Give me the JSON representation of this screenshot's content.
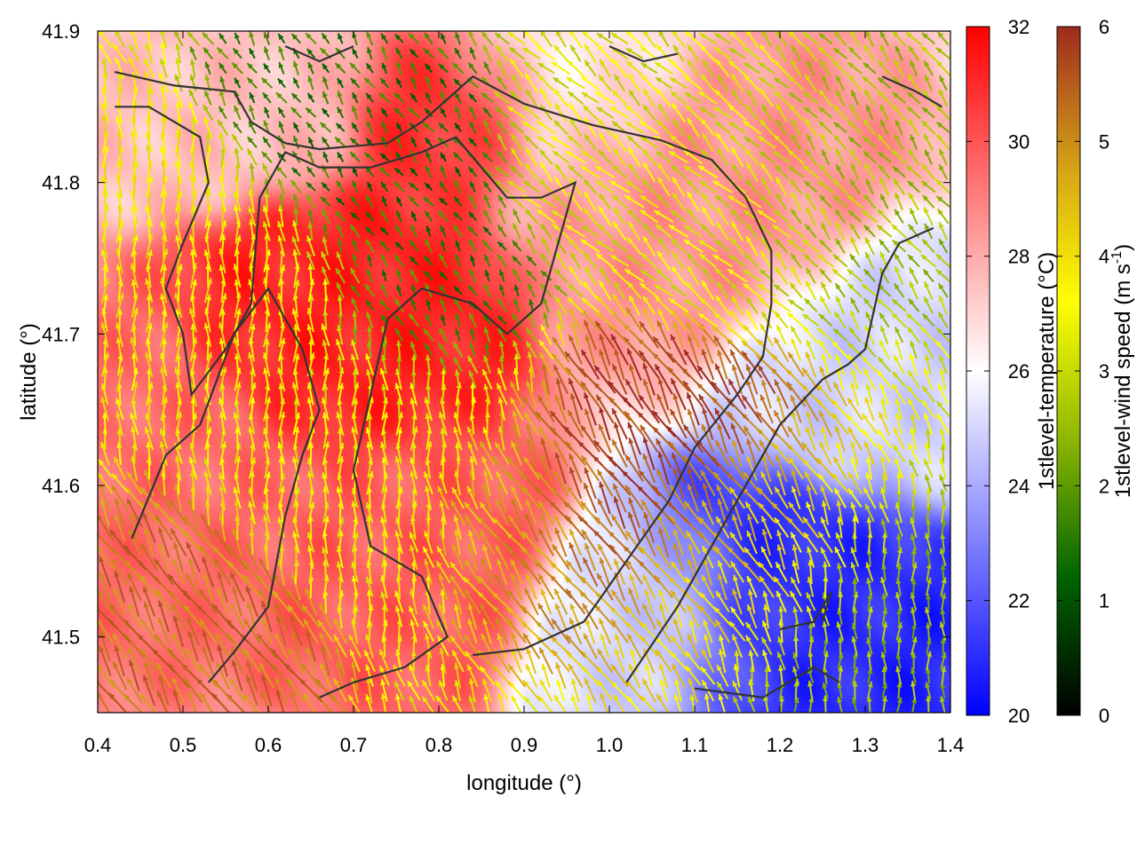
{
  "chart_data": {
    "type": "heatmap",
    "title": "",
    "xlabel": "longitude (°)",
    "ylabel": "latitude (°)",
    "xlim": [
      0.4,
      1.4
    ],
    "ylim": [
      41.45,
      41.9
    ],
    "x_ticks": [
      {
        "value": 0.4,
        "label": "0.4"
      },
      {
        "value": 0.5,
        "label": "0.5"
      },
      {
        "value": 0.6,
        "label": "0.6"
      },
      {
        "value": 0.7,
        "label": "0.7"
      },
      {
        "value": 0.8,
        "label": "0.8"
      },
      {
        "value": 0.9,
        "label": "0.9"
      },
      {
        "value": 1.0,
        "label": "1.0"
      },
      {
        "value": 1.1,
        "label": "1.1"
      },
      {
        "value": 1.2,
        "label": "1.2"
      },
      {
        "value": 1.3,
        "label": "1.3"
      },
      {
        "value": 1.4,
        "label": "1.4"
      }
    ],
    "y_ticks": [
      {
        "value": 41.5,
        "label": "41.5"
      },
      {
        "value": 41.6,
        "label": "41.6"
      },
      {
        "value": 41.7,
        "label": "41.7"
      },
      {
        "value": 41.8,
        "label": "41.8"
      },
      {
        "value": 41.9,
        "label": "41.9"
      }
    ],
    "temperature_colorbar": {
      "label": "1stlevel-temperature (°C)",
      "range": [
        20,
        32
      ],
      "ticks": [
        {
          "value": 20,
          "label": "20"
        },
        {
          "value": 22,
          "label": "22"
        },
        {
          "value": 24,
          "label": "24"
        },
        {
          "value": 26,
          "label": "26"
        },
        {
          "value": 28,
          "label": "28"
        },
        {
          "value": 30,
          "label": "30"
        },
        {
          "value": 32,
          "label": "32"
        }
      ],
      "colors": [
        "#0000ff",
        "#ffffff",
        "#ff0000"
      ]
    },
    "wind_colorbar": {
      "label": "1stlevel-wind speed (m s",
      "label_sup": "-1",
      "label_end": ")",
      "range": [
        0,
        6
      ],
      "ticks": [
        {
          "value": 0,
          "label": "0"
        },
        {
          "value": 1,
          "label": "1"
        },
        {
          "value": 2,
          "label": "2"
        },
        {
          "value": 3,
          "label": "3"
        },
        {
          "value": 4,
          "label": "4"
        },
        {
          "value": 5,
          "label": "5"
        },
        {
          "value": 6,
          "label": "6"
        }
      ],
      "colors": [
        "#000000",
        "#006400",
        "#8db600",
        "#ffff00",
        "#d4a017",
        "#9e2a1e"
      ]
    },
    "temperature_field": [
      {
        "lon": 0.45,
        "lat": 41.6,
        "temp": 29.5,
        "sigma": 0.09
      },
      {
        "lon": 0.68,
        "lat": 41.7,
        "temp": 31.2,
        "sigma": 0.07
      },
      {
        "lon": 0.82,
        "lat": 41.85,
        "temp": 31.0,
        "sigma": 0.05
      },
      {
        "lon": 0.75,
        "lat": 41.55,
        "temp": 29.8,
        "sigma": 0.07
      },
      {
        "lon": 1.22,
        "lat": 41.5,
        "temp": 21.0,
        "sigma": 0.08
      },
      {
        "lon": 1.35,
        "lat": 41.47,
        "temp": 20.8,
        "sigma": 0.05
      },
      {
        "lon": 1.33,
        "lat": 41.68,
        "temp": 25.0,
        "sigma": 0.07
      },
      {
        "lon": 1.05,
        "lat": 41.5,
        "temp": 25.2,
        "sigma": 0.06
      },
      {
        "lon": 0.95,
        "lat": 41.88,
        "temp": 26.5,
        "sigma": 0.07
      },
      {
        "lon": 1.12,
        "lat": 41.8,
        "temp": 28.5,
        "sigma": 0.08
      },
      {
        "lon": 0.55,
        "lat": 41.88,
        "temp": 27.5,
        "sigma": 0.07
      }
    ],
    "wind_field": [
      {
        "lon": 1.02,
        "lat": 41.61,
        "speed": 5.8,
        "u": -0.5,
        "v": 0.85,
        "sigma": 0.07
      },
      {
        "lon": 0.5,
        "lat": 41.5,
        "speed": 5.2,
        "u": -0.5,
        "v": 0.85,
        "sigma": 0.06
      },
      {
        "lon": 0.9,
        "lat": 41.58,
        "speed": 4.8,
        "u": -0.6,
        "v": 0.8,
        "sigma": 0.06
      },
      {
        "lon": 1.15,
        "lat": 41.55,
        "speed": 4.2,
        "u": -0.5,
        "v": 0.85,
        "sigma": 0.07
      },
      {
        "lon": 0.52,
        "lat": 41.75,
        "speed": 3.8,
        "u": 0.0,
        "v": 1.0,
        "sigma": 0.07
      },
      {
        "lon": 0.75,
        "lat": 41.62,
        "speed": 3.5,
        "u": 0.0,
        "v": 1.0,
        "sigma": 0.08
      },
      {
        "lon": 0.7,
        "lat": 41.82,
        "speed": 1.4,
        "u": -0.6,
        "v": 0.8,
        "sigma": 0.06
      },
      {
        "lon": 0.8,
        "lat": 41.72,
        "speed": 1.6,
        "u": -0.5,
        "v": 0.85,
        "sigma": 0.05
      },
      {
        "lon": 0.68,
        "lat": 41.86,
        "speed": 1.6,
        "u": -0.5,
        "v": 0.85,
        "sigma": 0.05
      },
      {
        "lon": 1.3,
        "lat": 41.82,
        "speed": 2.6,
        "u": -0.6,
        "v": 0.8,
        "sigma": 0.07
      },
      {
        "lon": 1.3,
        "lat": 41.5,
        "speed": 2.5,
        "u": 0.0,
        "v": 1.0,
        "sigma": 0.07
      },
      {
        "lon": 1.1,
        "lat": 41.82,
        "speed": 3.2,
        "u": -0.7,
        "v": 0.7,
        "sigma": 0.08
      }
    ],
    "contour_lines": [
      [
        [
          0.42,
          41.873
        ],
        [
          0.49,
          41.864
        ],
        [
          0.56,
          41.86
        ],
        [
          0.58,
          41.84
        ],
        [
          0.62,
          41.826
        ],
        [
          0.66,
          41.822
        ],
        [
          0.74,
          41.826
        ],
        [
          0.78,
          41.84
        ],
        [
          0.84,
          41.87
        ],
        [
          0.9,
          41.852
        ],
        [
          0.98,
          41.838
        ],
        [
          1.06,
          41.828
        ],
        [
          1.12,
          41.815
        ],
        [
          1.16,
          41.79
        ],
        [
          1.19,
          41.755
        ],
        [
          1.19,
          41.72
        ],
        [
          1.18,
          41.685
        ],
        [
          1.15,
          41.66
        ],
        [
          1.1,
          41.625
        ],
        [
          1.07,
          41.59
        ],
        [
          1.02,
          41.55
        ],
        [
          0.97,
          41.51
        ],
        [
          0.9,
          41.492
        ],
        [
          0.84,
          41.488
        ]
      ],
      [
        [
          0.42,
          41.85
        ],
        [
          0.46,
          41.85
        ],
        [
          0.52,
          41.83
        ],
        [
          0.53,
          41.8
        ],
        [
          0.5,
          41.76
        ],
        [
          0.48,
          41.73
        ],
        [
          0.5,
          41.7
        ],
        [
          0.51,
          41.66
        ],
        [
          0.55,
          41.69
        ],
        [
          0.58,
          41.72
        ],
        [
          0.59,
          41.79
        ],
        [
          0.62,
          41.82
        ],
        [
          0.66,
          41.81
        ],
        [
          0.72,
          41.81
        ],
        [
          0.78,
          41.82
        ],
        [
          0.82,
          41.83
        ],
        [
          0.88,
          41.79
        ],
        [
          0.92,
          41.79
        ],
        [
          0.96,
          41.8
        ],
        [
          0.92,
          41.72
        ],
        [
          0.88,
          41.7
        ],
        [
          0.84,
          41.72
        ],
        [
          0.78,
          41.73
        ],
        [
          0.74,
          41.71
        ],
        [
          0.7,
          41.61
        ],
        [
          0.72,
          41.56
        ],
        [
          0.78,
          41.54
        ],
        [
          0.81,
          41.5
        ],
        [
          0.76,
          41.48
        ],
        [
          0.7,
          41.47
        ],
        [
          0.66,
          41.46
        ]
      ],
      [
        [
          0.44,
          41.565
        ],
        [
          0.48,
          41.62
        ],
        [
          0.52,
          41.64
        ],
        [
          0.56,
          41.7
        ],
        [
          0.6,
          41.73
        ],
        [
          0.64,
          41.69
        ],
        [
          0.66,
          41.65
        ],
        [
          0.64,
          41.62
        ],
        [
          0.62,
          41.58
        ],
        [
          0.6,
          41.52
        ],
        [
          0.56,
          41.49
        ],
        [
          0.53,
          41.47
        ]
      ],
      [
        [
          1.02,
          41.47
        ],
        [
          1.08,
          41.52
        ],
        [
          1.14,
          41.58
        ],
        [
          1.2,
          41.64
        ],
        [
          1.25,
          41.67
        ],
        [
          1.28,
          41.68
        ],
        [
          1.3,
          41.69
        ],
        [
          1.32,
          41.74
        ],
        [
          1.34,
          41.76
        ],
        [
          1.38,
          41.77
        ]
      ],
      [
        [
          1.1,
          41.466
        ],
        [
          1.18,
          41.46
        ],
        [
          1.24,
          41.48
        ],
        [
          1.27,
          41.47
        ]
      ],
      [
        [
          1.2,
          41.505
        ],
        [
          1.24,
          41.51
        ],
        [
          1.26,
          41.53
        ],
        [
          1.25,
          41.51
        ]
      ],
      [
        [
          1.0,
          41.89
        ],
        [
          1.04,
          41.88
        ],
        [
          1.08,
          41.885
        ]
      ],
      [
        [
          1.32,
          41.87
        ],
        [
          1.36,
          41.86
        ],
        [
          1.39,
          41.85
        ]
      ],
      [
        [
          0.62,
          41.89
        ],
        [
          0.66,
          41.88
        ],
        [
          0.7,
          41.89
        ]
      ]
    ]
  }
}
